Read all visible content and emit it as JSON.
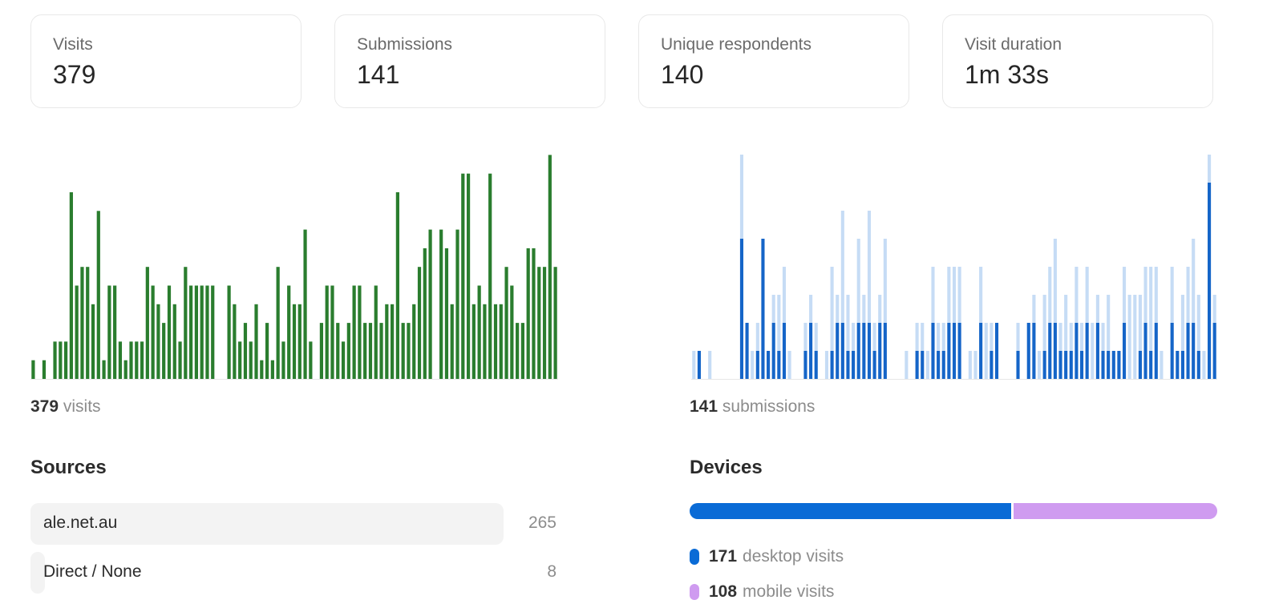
{
  "stats": [
    {
      "label": "Visits",
      "value": "379"
    },
    {
      "label": "Submissions",
      "value": "141"
    },
    {
      "label": "Unique respondents",
      "value": "140"
    },
    {
      "label": "Visit duration",
      "value": "1m 33s"
    }
  ],
  "visits_caption": {
    "count": "379",
    "unit": "visits"
  },
  "submissions_caption": {
    "count": "141",
    "unit": "submissions"
  },
  "sources": {
    "title": "Sources",
    "items": [
      {
        "name": "ale.net.au",
        "count": "265",
        "share": 0.9
      },
      {
        "name": "Direct / None",
        "count": "8",
        "share": 0.027
      }
    ]
  },
  "devices": {
    "title": "Devices",
    "items": [
      {
        "count": "171",
        "label": "desktop visits",
        "color": "#0a6bd6"
      },
      {
        "count": "108",
        "label": "mobile visits",
        "color": "#cf9bf0"
      }
    ]
  },
  "colors": {
    "visits_bar": "#2a7d2e",
    "submissions_dark": "#1565c8",
    "submissions_light": "#c6dcf5"
  },
  "chart_data": [
    {
      "type": "bar",
      "series": [
        {
          "values": [
            1,
            0,
            1,
            0,
            2,
            2,
            2,
            10,
            5,
            6,
            6,
            4,
            9,
            1,
            5,
            5,
            2,
            1,
            2,
            2,
            2,
            6,
            5,
            4,
            3,
            5,
            4,
            2,
            6,
            5,
            5,
            5,
            5,
            5,
            0,
            0,
            5,
            4,
            2,
            3,
            2,
            4,
            1,
            3,
            1,
            6,
            2,
            5,
            4,
            4,
            8,
            2,
            0,
            3,
            5,
            5,
            3,
            2,
            3,
            5,
            5,
            3,
            3,
            5,
            3,
            4,
            4,
            10,
            3,
            3,
            4,
            6,
            7,
            8,
            0,
            8,
            7,
            4,
            8,
            11,
            11,
            4,
            5,
            4,
            11,
            4,
            4,
            6,
            5,
            3,
            3,
            7,
            7,
            6,
            6,
            12,
            6
          ]
        }
      ]
    },
    {
      "type": "bar",
      "stacked": true,
      "series": [
        {
          "values": [
            0,
            1,
            0,
            0,
            0,
            0,
            0,
            0,
            0,
            5,
            2,
            0,
            1,
            5,
            1,
            2,
            1,
            2,
            0,
            0,
            0,
            1,
            2,
            1,
            0,
            0,
            1,
            2,
            2,
            1,
            1,
            2,
            2,
            2,
            1,
            2,
            2,
            0,
            0,
            0,
            0,
            0,
            1,
            1,
            0,
            2,
            1,
            1,
            2,
            2,
            2,
            0,
            0,
            0,
            2,
            0,
            1,
            2,
            0,
            0,
            0,
            1,
            0,
            2,
            2,
            0,
            1,
            2,
            2,
            1,
            1,
            1,
            2,
            1,
            2,
            0,
            2,
            1,
            1,
            1,
            1,
            2,
            0,
            0,
            1,
            2,
            1,
            2,
            0,
            0,
            2,
            1,
            1,
            2,
            2,
            1,
            0,
            7,
            2
          ]
        },
        {
          "values": [
            1,
            0,
            0,
            1,
            0,
            0,
            0,
            0,
            0,
            3,
            0,
            1,
            1,
            0,
            0,
            1,
            2,
            2,
            1,
            0,
            0,
            1,
            1,
            1,
            0,
            1,
            3,
            1,
            4,
            2,
            1,
            3,
            1,
            4,
            1,
            1,
            3,
            0,
            0,
            0,
            1,
            0,
            1,
            1,
            1,
            2,
            1,
            1,
            2,
            2,
            2,
            0,
            1,
            1,
            2,
            2,
            1,
            0,
            0,
            0,
            0,
            1,
            0,
            0,
            1,
            1,
            2,
            2,
            3,
            1,
            2,
            1,
            2,
            1,
            2,
            2,
            1,
            1,
            2,
            0,
            0,
            2,
            3,
            3,
            2,
            2,
            3,
            2,
            1,
            0,
            2,
            0,
            2,
            2,
            3,
            2,
            1,
            1,
            1
          ]
        }
      ]
    }
  ]
}
